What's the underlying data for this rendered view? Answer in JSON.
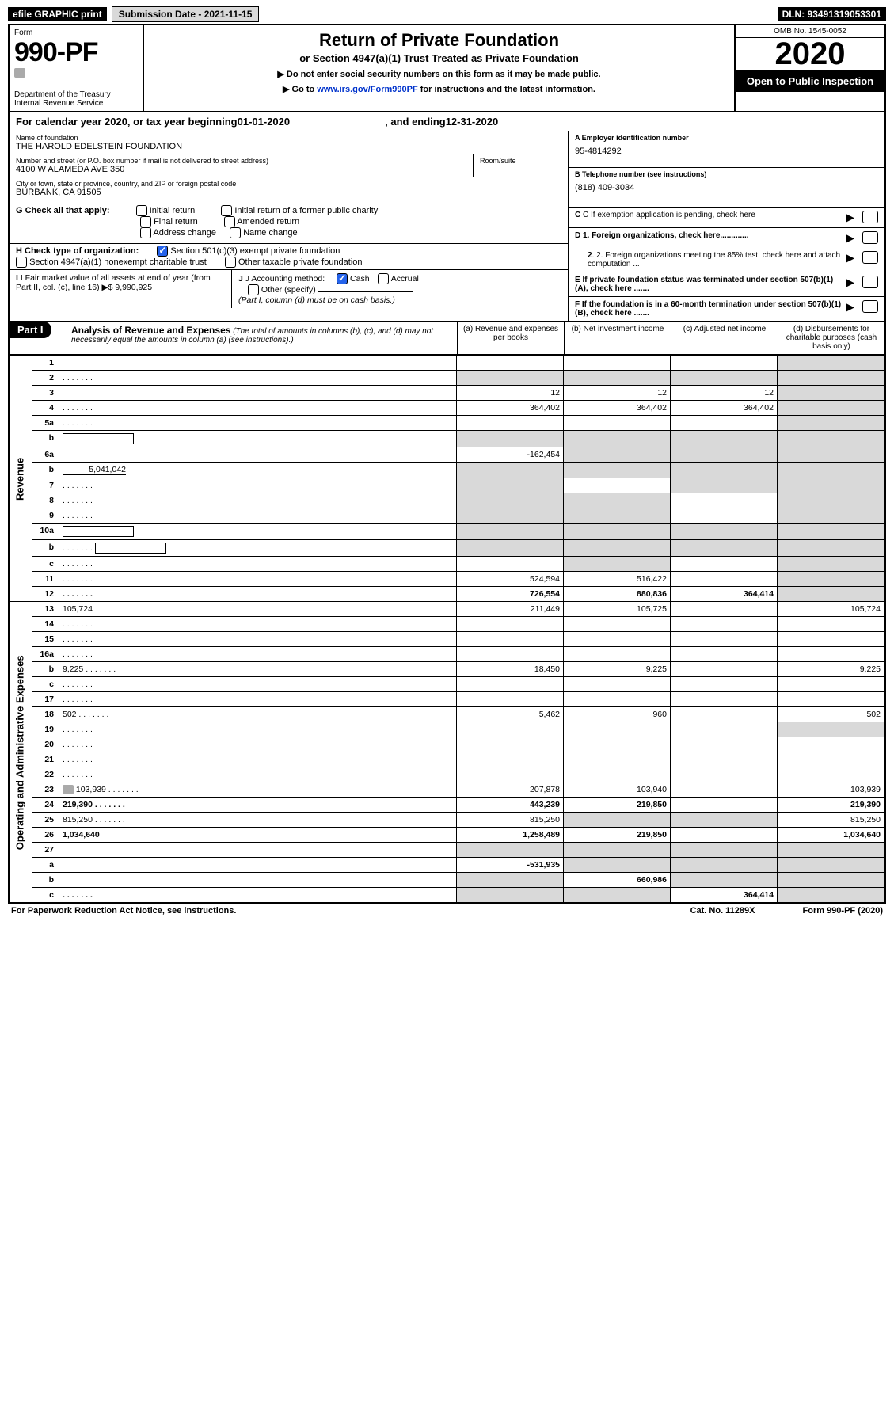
{
  "top": {
    "efile": "efile GRAPHIC print",
    "submission": "Submission Date - 2021-11-15",
    "dln": "DLN: 93491319053301"
  },
  "header": {
    "form_label": "Form",
    "form_number": "990-PF",
    "dept1": "Department of the Treasury",
    "dept2": "Internal Revenue Service",
    "title": "Return of Private Foundation",
    "subtitle": "or Section 4947(a)(1) Trust Treated as Private Foundation",
    "note1": "▶ Do not enter social security numbers on this form as it may be made public.",
    "note2_pre": "▶ Go to ",
    "note2_link": "www.irs.gov/Form990PF",
    "note2_post": " for instructions and the latest information.",
    "omb": "OMB No. 1545-0052",
    "year": "2020",
    "open": "Open to Public Inspection"
  },
  "calyear": {
    "pre": "For calendar year 2020, or tax year beginning ",
    "begin": "01-01-2020",
    "mid": ", and ending ",
    "end": "12-31-2020"
  },
  "info": {
    "name_label": "Name of foundation",
    "name": "THE HAROLD EDELSTEIN FOUNDATION",
    "addr_label": "Number and street (or P.O. box number if mail is not delivered to street address)",
    "addr": "4100 W ALAMEDA AVE 350",
    "room_label": "Room/suite",
    "city_label": "City or town, state or province, country, and ZIP or foreign postal code",
    "city": "BURBANK, CA  91505",
    "ein_label": "A Employer identification number",
    "ein": "95-4814292",
    "phone_label": "B Telephone number (see instructions)",
    "phone": "(818) 409-3034",
    "c": "C If exemption application is pending, check here",
    "d1": "D 1. Foreign organizations, check here.............",
    "d2": "2. Foreign organizations meeting the 85% test, check here and attach computation ...",
    "e": "E  If private foundation status was terminated under section 507(b)(1)(A), check here .......",
    "f": "F  If the foundation is in a 60-month termination under section 507(b)(1)(B), check here .......",
    "g_label": "G Check all that apply:",
    "g_opts": [
      "Initial return",
      "Initial return of a former public charity",
      "Final return",
      "Amended return",
      "Address change",
      "Name change"
    ],
    "h_label": "H Check type of organization:",
    "h_opt1": "Section 501(c)(3) exempt private foundation",
    "h_opt2": "Section 4947(a)(1) nonexempt charitable trust",
    "h_opt3": "Other taxable private foundation",
    "i_label": "I Fair market value of all assets at end of year (from Part II, col. (c), line 16) ▶$",
    "i_val": "9,990,925",
    "j_label": "J Accounting method:",
    "j_cash": "Cash",
    "j_accrual": "Accrual",
    "j_other": "Other (specify)",
    "j_note": "(Part I, column (d) must be on cash basis.)"
  },
  "part1": {
    "label": "Part I",
    "title": "Analysis of Revenue and Expenses",
    "title_note": "(The total of amounts in columns (b), (c), and (d) may not necessarily equal the amounts in column (a) (see instructions).)",
    "col_a": "(a)   Revenue and expenses per books",
    "col_b": "(b)   Net investment income",
    "col_c": "(c)   Adjusted net income",
    "col_d": "(d)   Disbursements for charitable purposes (cash basis only)"
  },
  "side_labels": {
    "revenue": "Revenue",
    "expenses": "Operating and Administrative Expenses"
  },
  "lines": [
    {
      "n": "1",
      "d": "",
      "a": "",
      "b": "",
      "c": "",
      "shade_d": true
    },
    {
      "n": "2",
      "d": "",
      "a": "",
      "b": "",
      "c": "",
      "shade_all": true,
      "bold_not": true,
      "dots": true
    },
    {
      "n": "3",
      "d": "",
      "a": "12",
      "b": "12",
      "c": "12",
      "shade_d": true
    },
    {
      "n": "4",
      "d": "",
      "a": "364,402",
      "b": "364,402",
      "c": "364,402",
      "shade_d": true,
      "dots": true
    },
    {
      "n": "5a",
      "d": "",
      "a": "",
      "b": "",
      "c": "",
      "shade_d": true,
      "dots": true
    },
    {
      "n": "b",
      "d": "",
      "a": "",
      "b": "",
      "c": "",
      "shade_all": true,
      "underline_box": true
    },
    {
      "n": "6a",
      "d": "",
      "a": "-162,454",
      "b": "",
      "c": "",
      "shade_bcd": true
    },
    {
      "n": "b",
      "d": "",
      "a": "",
      "b": "",
      "c": "",
      "shade_all": true,
      "inline_val": "5,041,042"
    },
    {
      "n": "7",
      "d": "",
      "a": "",
      "b": "",
      "c": "",
      "shade_a": true,
      "shade_cd": true,
      "dots": true
    },
    {
      "n": "8",
      "d": "",
      "a": "",
      "b": "",
      "c": "",
      "shade_ab": true,
      "shade_d": true,
      "dots": true
    },
    {
      "n": "9",
      "d": "",
      "a": "",
      "b": "",
      "c": "",
      "shade_ab": true,
      "shade_d": true,
      "dots": true
    },
    {
      "n": "10a",
      "d": "",
      "a": "",
      "b": "",
      "c": "",
      "shade_all": true,
      "underline_box": true
    },
    {
      "n": "b",
      "d": "",
      "a": "",
      "b": "",
      "c": "",
      "shade_all": true,
      "dots": true,
      "underline_box": true
    },
    {
      "n": "c",
      "d": "",
      "a": "",
      "b": "",
      "c": "",
      "shade_bd": true,
      "dots": true
    },
    {
      "n": "11",
      "d": "",
      "a": "524,594",
      "b": "516,422",
      "c": "",
      "shade_d": true,
      "dots": true
    },
    {
      "n": "12",
      "d": "",
      "a": "726,554",
      "b": "880,836",
      "c": "364,414",
      "bold": true,
      "shade_d": true,
      "dots": true
    },
    {
      "n": "13",
      "d": "105,724",
      "a": "211,449",
      "b": "105,725",
      "c": "",
      "sec": "exp"
    },
    {
      "n": "14",
      "d": "",
      "a": "",
      "b": "",
      "c": "",
      "dots": true,
      "sec": "exp"
    },
    {
      "n": "15",
      "d": "",
      "a": "",
      "b": "",
      "c": "",
      "dots": true,
      "sec": "exp"
    },
    {
      "n": "16a",
      "d": "",
      "a": "",
      "b": "",
      "c": "",
      "dots": true,
      "sec": "exp"
    },
    {
      "n": "b",
      "d": "9,225",
      "a": "18,450",
      "b": "9,225",
      "c": "",
      "dots": true,
      "sec": "exp"
    },
    {
      "n": "c",
      "d": "",
      "a": "",
      "b": "",
      "c": "",
      "dots": true,
      "sec": "exp"
    },
    {
      "n": "17",
      "d": "",
      "a": "",
      "b": "",
      "c": "",
      "dots": true,
      "sec": "exp"
    },
    {
      "n": "18",
      "d": "502",
      "a": "5,462",
      "b": "960",
      "c": "",
      "dots": true,
      "sec": "exp"
    },
    {
      "n": "19",
      "d": "",
      "a": "",
      "b": "",
      "c": "",
      "shade_d": true,
      "dots": true,
      "sec": "exp"
    },
    {
      "n": "20",
      "d": "",
      "a": "",
      "b": "",
      "c": "",
      "dots": true,
      "sec": "exp"
    },
    {
      "n": "21",
      "d": "",
      "a": "",
      "b": "",
      "c": "",
      "dots": true,
      "sec": "exp"
    },
    {
      "n": "22",
      "d": "",
      "a": "",
      "b": "",
      "c": "",
      "dots": true,
      "sec": "exp"
    },
    {
      "n": "23",
      "d": "103,939",
      "a": "207,878",
      "b": "103,940",
      "c": "",
      "dots": true,
      "icon": true,
      "sec": "exp"
    },
    {
      "n": "24",
      "d": "219,390",
      "a": "443,239",
      "b": "219,850",
      "c": "",
      "bold": true,
      "dots": true,
      "sec": "exp"
    },
    {
      "n": "25",
      "d": "815,250",
      "a": "815,250",
      "b": "",
      "c": "",
      "shade_bc": true,
      "dots": true,
      "sec": "exp"
    },
    {
      "n": "26",
      "d": "1,034,640",
      "a": "1,258,489",
      "b": "219,850",
      "c": "",
      "bold": true,
      "sec": "exp"
    },
    {
      "n": "27",
      "d": "",
      "a": "",
      "b": "",
      "c": "",
      "shade_all": true,
      "sec": "bot"
    },
    {
      "n": "a",
      "d": "",
      "a": "-531,935",
      "b": "",
      "c": "",
      "bold": true,
      "shade_bcd": true,
      "sec": "bot"
    },
    {
      "n": "b",
      "d": "",
      "a": "",
      "b": "660,986",
      "c": "",
      "bold": true,
      "shade_a": true,
      "shade_cd": true,
      "sec": "bot"
    },
    {
      "n": "c",
      "d": "",
      "a": "",
      "b": "",
      "c": "364,414",
      "bold": true,
      "shade_ab": true,
      "shade_d": true,
      "dots": true,
      "sec": "bot"
    }
  ],
  "footer": {
    "left": "For Paperwork Reduction Act Notice, see instructions.",
    "mid": "Cat. No. 11289X",
    "right": "Form 990-PF (2020)"
  },
  "colors": {
    "shade": "#d9d9d9",
    "link": "#0033cc",
    "check": "#2563eb"
  }
}
